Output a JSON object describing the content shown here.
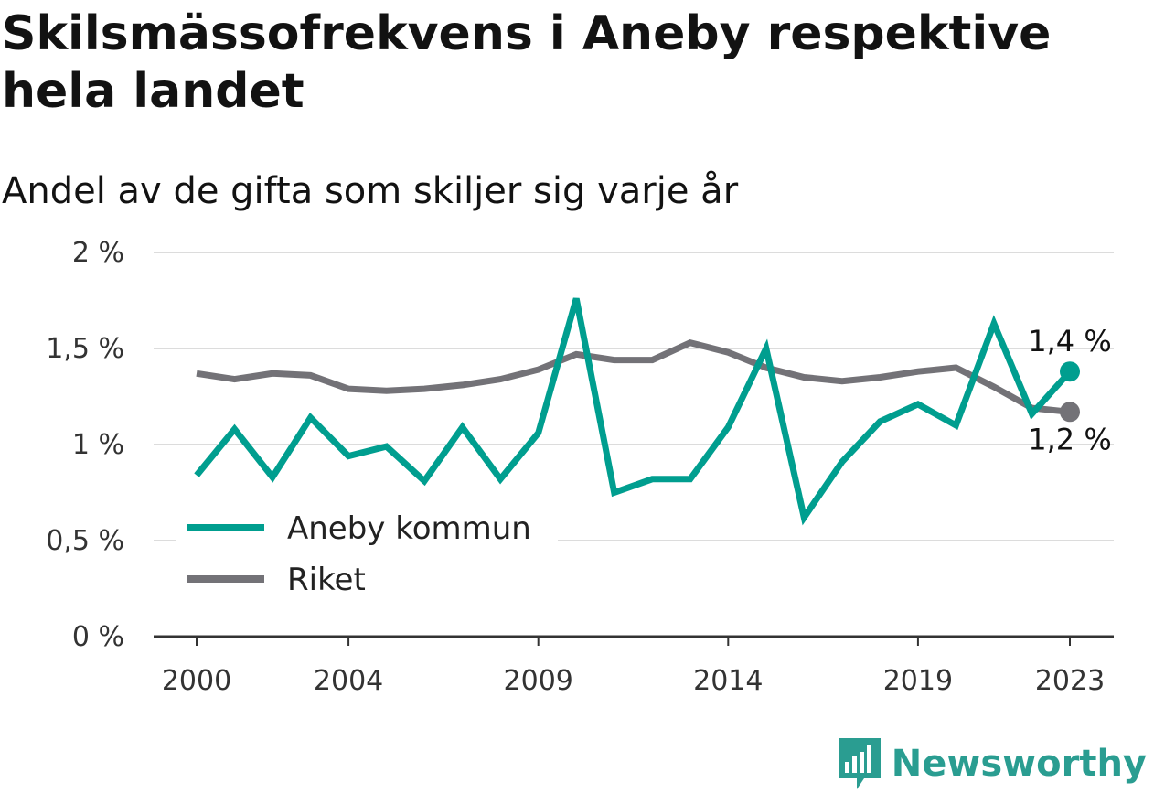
{
  "title": "Skilsmässofrekvens i Aneby respektive hela landet",
  "subtitle": "Andel av de gifta som skiljer sig varje år",
  "brand": "Newsworthy",
  "chart_data": {
    "type": "line",
    "title": "Skilsmässofrekvens i Aneby respektive hela landet",
    "subtitle": "Andel av de gifta som skiljer sig varje år",
    "xlabel": "",
    "ylabel": "",
    "x": [
      2000,
      2001,
      2002,
      2003,
      2004,
      2005,
      2006,
      2007,
      2008,
      2009,
      2010,
      2011,
      2012,
      2013,
      2014,
      2015,
      2016,
      2017,
      2018,
      2019,
      2020,
      2021,
      2022,
      2023
    ],
    "x_tick_labels": [
      "2000",
      "2004",
      "2009",
      "2014",
      "2019",
      "2023"
    ],
    "y_tick_labels": [
      "0 %",
      "0,5 %",
      "1 %",
      "1,5 %",
      "2 %"
    ],
    "ylim": [
      0,
      2
    ],
    "grid": true,
    "legend_position": "lower-left",
    "series": [
      {
        "name": "Aneby kommun",
        "color": "#009e8f",
        "values": [
          0.84,
          1.08,
          0.83,
          1.14,
          0.94,
          0.99,
          0.81,
          1.09,
          0.82,
          1.06,
          1.76,
          0.75,
          0.82,
          0.82,
          1.09,
          1.5,
          0.62,
          0.91,
          1.12,
          1.21,
          1.1,
          1.63,
          1.16,
          1.38
        ],
        "end_label": "1,4 %"
      },
      {
        "name": "Riket",
        "color": "#737277",
        "values": [
          1.37,
          1.34,
          1.37,
          1.36,
          1.29,
          1.28,
          1.29,
          1.31,
          1.34,
          1.39,
          1.47,
          1.44,
          1.44,
          1.53,
          1.48,
          1.4,
          1.35,
          1.33,
          1.35,
          1.38,
          1.4,
          1.3,
          1.19,
          1.17
        ],
        "end_label": "1,2 %"
      }
    ]
  }
}
